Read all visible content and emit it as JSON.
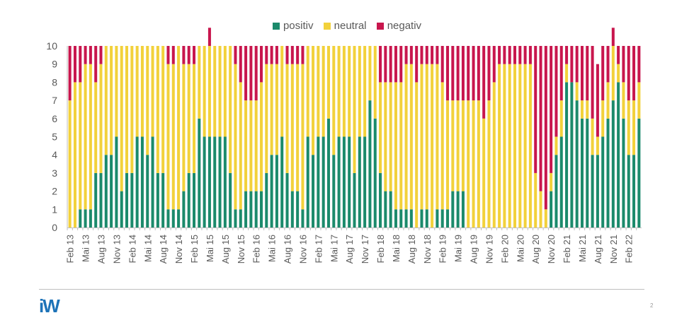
{
  "legend": [
    {
      "name": "positiv",
      "color": "#1b8a6b"
    },
    {
      "name": "neutral",
      "color": "#f2d13b"
    },
    {
      "name": "negativ",
      "color": "#c8164d"
    }
  ],
  "footer": {
    "logo": "iW",
    "page": "2"
  },
  "chart_data": {
    "type": "bar",
    "stacked": true,
    "title": "",
    "xlabel": "",
    "ylabel": "",
    "ylim": [
      0,
      10
    ],
    "yticks": [
      0,
      1,
      2,
      3,
      4,
      5,
      6,
      7,
      8,
      9,
      10
    ],
    "legend_position": "top-center",
    "grid": false,
    "xtick_labels": [
      "Feb 13",
      "Mai 13",
      "Aug 13",
      "Nov 13",
      "Feb 14",
      "Mai 14",
      "Aug 14",
      "Nov 14",
      "Feb 15",
      "Mai 15",
      "Aug 15",
      "Nov 15",
      "Feb 16",
      "Mai 16",
      "Aug 16",
      "Nov 16",
      "Feb 17",
      "Mai 17",
      "Aug 17",
      "Nov 17",
      "Feb 18",
      "Mai 18",
      "Aug 18",
      "Nov 18",
      "Feb 19",
      "Mai 19",
      "Aug 19",
      "Nov 19",
      "Feb 20",
      "Mai 20",
      "Aug 20",
      "Nov 20",
      "Feb 21",
      "Mai 21",
      "Aug 21",
      "Nov 21",
      "Feb 22"
    ],
    "series": [
      {
        "name": "positiv",
        "values": [
          0,
          0,
          1,
          1,
          1,
          3,
          3,
          4,
          4,
          5,
          2,
          3,
          3,
          5,
          5,
          4,
          5,
          3,
          3,
          1,
          1,
          1,
          2,
          3,
          3,
          6,
          5,
          5,
          5,
          5,
          5,
          3,
          1,
          1,
          2,
          2,
          2,
          2,
          3,
          4,
          4,
          5,
          3,
          2,
          2,
          1,
          5,
          4,
          5,
          5,
          6,
          4,
          5,
          5,
          5,
          3,
          5,
          5,
          7,
          6,
          3,
          2,
          2,
          1,
          1,
          1,
          1,
          0,
          1,
          1,
          0,
          1,
          1,
          1,
          2,
          2,
          2,
          0,
          0,
          0,
          0,
          0,
          0,
          0,
          0,
          0,
          0,
          0,
          0,
          0,
          0,
          0,
          0,
          2,
          4,
          5,
          8,
          8,
          7,
          6,
          6,
          4,
          4,
          5,
          6,
          7,
          8,
          6,
          4,
          4,
          6
        ]
      },
      {
        "name": "neutral",
        "values": [
          7,
          8,
          7,
          8,
          8,
          5,
          6,
          6,
          6,
          5,
          8,
          7,
          7,
          5,
          5,
          6,
          5,
          7,
          7,
          8,
          8,
          9,
          7,
          6,
          6,
          4,
          5,
          5,
          5,
          5,
          5,
          7,
          8,
          7,
          5,
          5,
          5,
          6,
          6,
          5,
          5,
          5,
          6,
          7,
          7,
          8,
          5,
          6,
          5,
          5,
          4,
          6,
          5,
          5,
          5,
          7,
          5,
          5,
          3,
          4,
          5,
          6,
          6,
          7,
          7,
          8,
          8,
          8,
          8,
          8,
          9,
          8,
          7,
          6,
          5,
          5,
          5,
          7,
          7,
          7,
          6,
          7,
          8,
          9,
          9,
          9,
          9,
          9,
          9,
          9,
          3,
          2,
          1,
          1,
          1,
          2,
          1,
          0,
          1,
          1,
          1,
          2,
          1,
          2,
          2,
          3,
          1,
          2,
          3,
          3,
          2
        ]
      },
      {
        "name": "negativ",
        "values": [
          3,
          2,
          2,
          1,
          1,
          2,
          1,
          0,
          0,
          0,
          0,
          0,
          0,
          0,
          0,
          0,
          0,
          0,
          0,
          1,
          1,
          0,
          1,
          1,
          1,
          0,
          0,
          1,
          0,
          0,
          0,
          0,
          1,
          2,
          3,
          3,
          3,
          2,
          1,
          1,
          1,
          0,
          1,
          1,
          1,
          1,
          0,
          0,
          0,
          0,
          0,
          0,
          0,
          0,
          0,
          0,
          0,
          0,
          0,
          0,
          2,
          2,
          2,
          2,
          2,
          1,
          1,
          2,
          1,
          1,
          1,
          1,
          2,
          3,
          3,
          3,
          3,
          3,
          3,
          3,
          4,
          3,
          2,
          1,
          1,
          1,
          1,
          1,
          1,
          1,
          7,
          8,
          9,
          7,
          5,
          3,
          1,
          2,
          2,
          3,
          3,
          4,
          4,
          3,
          2,
          1,
          1,
          2,
          3,
          3,
          2
        ]
      }
    ]
  }
}
